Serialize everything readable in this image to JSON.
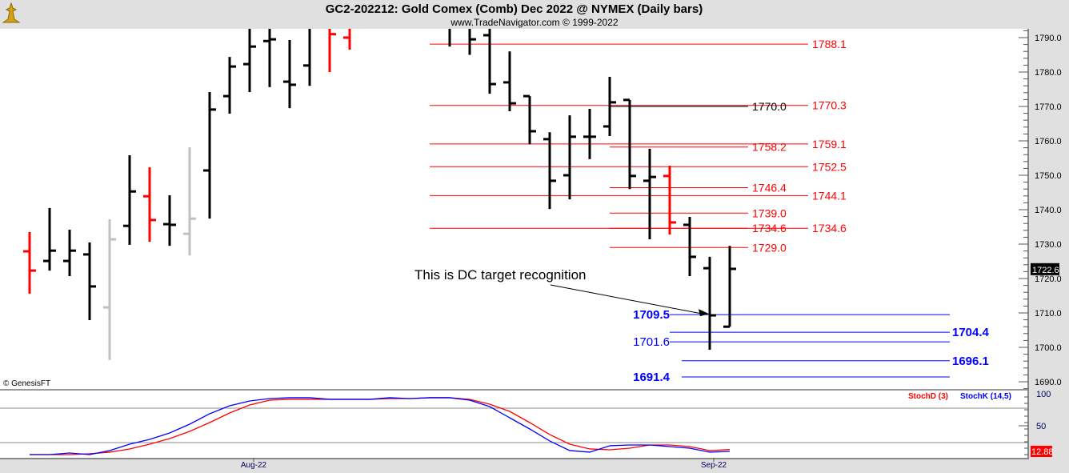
{
  "header": {
    "title": "GC2-202212:  Gold Comex (Comb) Dec 2022 @ NYMEX  (Daily bars)",
    "subtitle": "www.TradeNavigator.com © 1999-2022",
    "logo_icon": "gold-statue-logo",
    "copyright": "© GenesisFT"
  },
  "chart_data": [
    {
      "type": "ohlc-bar",
      "title": "GC2-202212:  Gold Comex (Comb) Dec 2022 @ NYMEX  (Daily bars)",
      "y_range": [
        1687,
        1793
      ],
      "y_ticks": [
        "1790.0",
        "1780.0",
        "1770.0",
        "1760.0",
        "1750.0",
        "1740.0",
        "1730.0",
        "1720.0",
        "1710.0",
        "1700.0",
        "1690.0"
      ],
      "y_tick_values": [
        1790,
        1780,
        1770,
        1760,
        1750,
        1740,
        1730,
        1720,
        1710,
        1700,
        1690
      ],
      "last_price_label": "1722.6",
      "colors": {
        "black": "#000000",
        "red": "#ff0000",
        "gray": "#c0c0c0",
        "green": "#00e000"
      },
      "bars": [
        {
          "o": 1727.9,
          "h": 1733.5,
          "l": 1715.6,
          "c": 1722.3,
          "color": "red"
        },
        {
          "o": 1725.1,
          "h": 1740.5,
          "l": 1722.3,
          "c": 1728.1,
          "color": "black"
        },
        {
          "o": 1725.1,
          "h": 1734.2,
          "l": 1720.7,
          "c": 1728.1,
          "color": "black"
        },
        {
          "o": 1727.0,
          "h": 1730.5,
          "l": 1707.9,
          "c": 1717.7,
          "color": "black"
        },
        {
          "o": 1711.6,
          "h": 1737.2,
          "l": 1696.3,
          "c": 1731.4,
          "color": "gray"
        },
        {
          "o": 1735.3,
          "h": 1755.8,
          "l": 1729.8,
          "c": 1745.3,
          "color": "black"
        },
        {
          "o": 1743.9,
          "h": 1752.3,
          "l": 1730.7,
          "c": 1737.0,
          "color": "red"
        },
        {
          "o": 1735.8,
          "h": 1744.2,
          "l": 1729.5,
          "c": 1735.6,
          "color": "black"
        },
        {
          "o": 1733.0,
          "h": 1758.1,
          "l": 1726.7,
          "c": 1737.4,
          "color": "gray"
        },
        {
          "o": 1751.4,
          "h": 1774.2,
          "l": 1737.4,
          "c": 1769.1,
          "color": "black"
        },
        {
          "o": 1773.0,
          "h": 1784.4,
          "l": 1767.9,
          "c": 1781.6,
          "color": "black"
        },
        {
          "o": 1782.3,
          "h": 1793,
          "l": 1774.2,
          "c": 1787.4,
          "color": "black"
        },
        {
          "o": 1789.0,
          "h": 1793,
          "l": 1775.6,
          "c": 1789.5,
          "color": "black"
        },
        {
          "o": 1777.2,
          "h": 1789.3,
          "l": 1769.5,
          "c": 1776.3,
          "color": "black"
        },
        {
          "o": 1781.9,
          "h": 1793,
          "l": 1776.0,
          "c": 1793,
          "color": "black"
        },
        {
          "o": 1793,
          "h": 1793,
          "l": 1780.0,
          "c": 1791.0,
          "color": "red"
        },
        {
          "o": 1790.0,
          "h": 1793,
          "l": 1786.5,
          "c": 1793,
          "color": "red"
        },
        null,
        null,
        null,
        null,
        {
          "o": 1793,
          "h": 1793,
          "l": 1787.4,
          "c": 1793,
          "color": "black"
        },
        {
          "o": 1793,
          "h": 1793,
          "l": 1785.0,
          "c": 1789.5,
          "color": "black"
        },
        {
          "o": 1790.7,
          "h": 1793,
          "l": 1773.7,
          "c": 1776.5,
          "color": "black"
        },
        {
          "o": 1777.0,
          "h": 1786.0,
          "l": 1768.6,
          "c": 1770.9,
          "color": "black"
        },
        {
          "o": 1773.0,
          "h": 1773.0,
          "l": 1759.0,
          "c": 1762.8,
          "color": "black"
        },
        {
          "o": 1760.5,
          "h": 1762.5,
          "l": 1740.2,
          "c": 1748.4,
          "color": "black"
        },
        {
          "o": 1750.0,
          "h": 1767.4,
          "l": 1743.0,
          "c": 1761.2,
          "color": "black"
        },
        {
          "o": 1761.2,
          "h": 1769.3,
          "l": 1754.7,
          "c": 1761.2,
          "color": "black"
        },
        {
          "o": 1764.2,
          "h": 1778.6,
          "l": 1761.4,
          "c": 1771.2,
          "color": "black"
        },
        {
          "o": 1771.9,
          "h": 1771.9,
          "l": 1746.0,
          "c": 1749.8,
          "color": "black"
        },
        {
          "o": 1748.4,
          "h": 1757.7,
          "l": 1731.4,
          "c": 1749.5,
          "color": "black"
        },
        {
          "o": 1749.8,
          "h": 1752.8,
          "l": 1732.8,
          "c": 1736.3,
          "color": "red"
        },
        {
          "o": 1735.6,
          "h": 1737.9,
          "l": 1720.7,
          "c": 1726.3,
          "color": "black"
        },
        {
          "o": 1723.0,
          "h": 1726.3,
          "l": 1699.3,
          "c": 1709.3,
          "color": "black"
        },
        {
          "o": 1706.0,
          "h": 1729.5,
          "l": 1706.0,
          "c": 1722.8,
          "color": "black"
        }
      ],
      "levels": [
        {
          "price": 1788.1,
          "label": "1788.1",
          "color": "#ff0000",
          "group": "A"
        },
        {
          "price": 1770.3,
          "label": "1770.3",
          "color": "#ff0000",
          "group": "A"
        },
        {
          "price": 1759.1,
          "label": "1759.1",
          "color": "#ff0000",
          "group": "A"
        },
        {
          "price": 1752.5,
          "label": "1752.5",
          "color": "#ff0000",
          "group": "A"
        },
        {
          "price": 1744.1,
          "label": "1744.1",
          "color": "#ff0000",
          "group": "A"
        },
        {
          "price": 1734.6,
          "label": "1734.6",
          "color": "#ff0000",
          "group": "A"
        },
        {
          "price": 1770.0,
          "label": "1770.0",
          "color": "#000000",
          "group": "B"
        },
        {
          "price": 1758.2,
          "label": "1758.2",
          "color": "#ff0000",
          "group": "B"
        },
        {
          "price": 1746.4,
          "label": "1746.4",
          "color": "#ff0000",
          "group": "B"
        },
        {
          "price": 1739.0,
          "label": "1739.0",
          "color": "#ff0000",
          "group": "B"
        },
        {
          "price": 1734.6,
          "label": "1734.6",
          "color": "#ff0000",
          "group": "B"
        },
        {
          "price": 1729.0,
          "label": "1729.0",
          "color": "#ff0000",
          "group": "B"
        },
        {
          "price": 1709.5,
          "label": "1709.5",
          "color": "#0000ff",
          "group": "C-left",
          "bold": true
        },
        {
          "price": 1704.4,
          "label": "1704.4",
          "color": "#0000ff",
          "group": "C-right",
          "bold": true
        },
        {
          "price": 1701.6,
          "label": "1701.6",
          "color": "#0000ff",
          "group": "C-left",
          "bold": false
        },
        {
          "price": 1696.1,
          "label": "1696.1",
          "color": "#0000ff",
          "group": "D-right",
          "bold": true
        },
        {
          "price": 1691.4,
          "label": "1691.4",
          "color": "#0000ff",
          "group": "D-left",
          "bold": true
        }
      ],
      "annotation": {
        "text": "This is DC target recognition",
        "points_to_price": 1709.5
      }
    },
    {
      "type": "line",
      "y_range": [
        0,
        100
      ],
      "y_ticks": [
        "100",
        "50"
      ],
      "reference_lines": [
        80,
        20
      ],
      "x_ticks": [
        {
          "label": "Aug-22",
          "bar_index": 11.2
        },
        {
          "label": "Sep-22",
          "bar_index": 34.2
        }
      ],
      "last_value_label": "12.88",
      "series": [
        {
          "name": "StochK (14,5)",
          "color": "#0000ff",
          "values": [
            5,
            5,
            7.5,
            5,
            11.3,
            21.3,
            28.8,
            38.8,
            52.5,
            68.8,
            81.3,
            88.8,
            92.5,
            93.8,
            93.8,
            91.3,
            91.3,
            91.3,
            93.8,
            92.5,
            93.8,
            93.8,
            90,
            80,
            62.5,
            45,
            26.3,
            11.3,
            8.8,
            18.8,
            20,
            20,
            17.5,
            15,
            8.8,
            10
          ]
        },
        {
          "name": "StochD (3)",
          "color": "#ff0000",
          "values": [
            5,
            5,
            5,
            6.3,
            8.8,
            13.8,
            21.3,
            30,
            41.3,
            55,
            70,
            82.5,
            90,
            91.3,
            91.3,
            91.3,
            91.3,
            91.3,
            92.5,
            92.5,
            93.8,
            93.8,
            91.3,
            83.8,
            72.5,
            55,
            36.3,
            21.3,
            13.8,
            12.5,
            15,
            20,
            20,
            17.5,
            11.3,
            12.88
          ]
        }
      ]
    }
  ]
}
